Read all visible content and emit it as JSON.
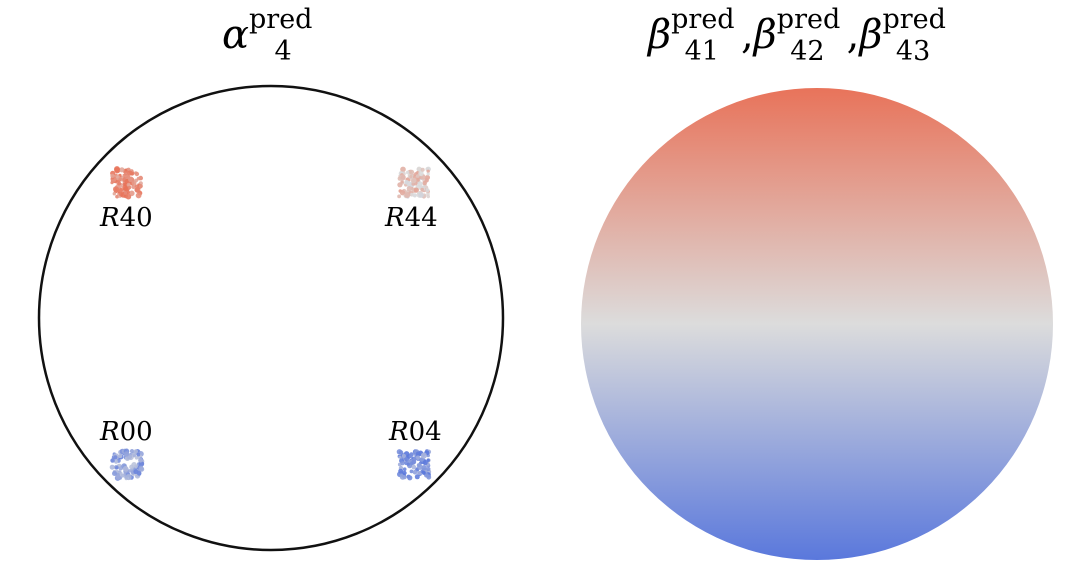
{
  "left_panel": {
    "title": {
      "symbol": "α",
      "superscript": "pred",
      "subscript": "4"
    },
    "regions": [
      {
        "id": "R40",
        "label_letter": "R",
        "label_number": "40",
        "value": 0.82
      },
      {
        "id": "R44",
        "label_letter": "R",
        "label_number": "44",
        "value": 0.25
      },
      {
        "id": "R00",
        "label_letter": "R",
        "label_number": "00",
        "value": -0.55
      },
      {
        "id": "R04",
        "label_letter": "R",
        "label_number": "04",
        "value": -0.7
      }
    ]
  },
  "right_panel": {
    "title": [
      {
        "symbol": "β",
        "superscript": "pred",
        "subscript": "41"
      },
      {
        "symbol": "β",
        "superscript": "pred",
        "subscript": "42"
      },
      {
        "symbol": "β",
        "superscript": "pred",
        "subscript": "43"
      }
    ],
    "separator": ","
  },
  "colormap": {
    "name": "coolwarm",
    "high": "#e8735a",
    "mid": "#dcdcdc",
    "low": "#5a78dc"
  }
}
